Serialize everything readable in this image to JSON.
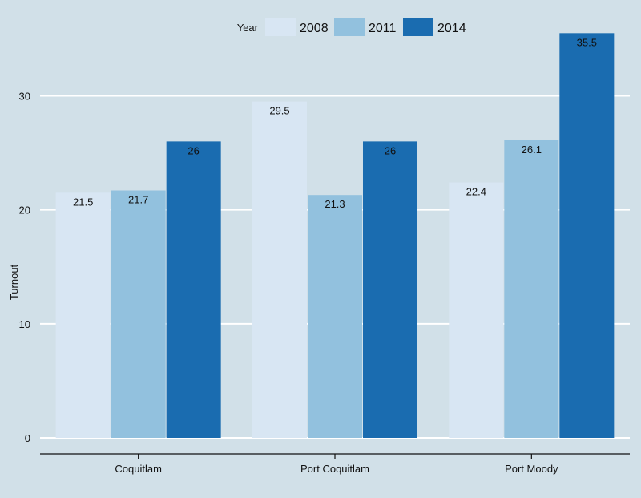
{
  "chart_data": {
    "type": "bar",
    "categories": [
      "Coquitlam",
      "Port Coquitlam",
      "Port Moody"
    ],
    "series": [
      {
        "name": "2008",
        "values": [
          21.5,
          29.5,
          22.4
        ],
        "color": "#d8e6f3"
      },
      {
        "name": "2011",
        "values": [
          21.7,
          21.3,
          26.1
        ],
        "color": "#92c1de"
      },
      {
        "name": "2014",
        "values": [
          26,
          26,
          35.5
        ],
        "color": "#1a6cb0"
      }
    ],
    "value_labels": [
      [
        "21.5",
        "29.5",
        "22.4"
      ],
      [
        "21.7",
        "21.3",
        "26.1"
      ],
      [
        "26",
        "26",
        "35.5"
      ]
    ],
    "legend_title": "Year",
    "legend_position": "top",
    "xlabel": "",
    "ylabel": "Turnout",
    "ylim": [
      0,
      37
    ],
    "yticks": [
      0,
      10,
      20,
      30
    ],
    "grid": true,
    "background_color": "#d1e0e8",
    "grid_color": "#ffffff"
  }
}
